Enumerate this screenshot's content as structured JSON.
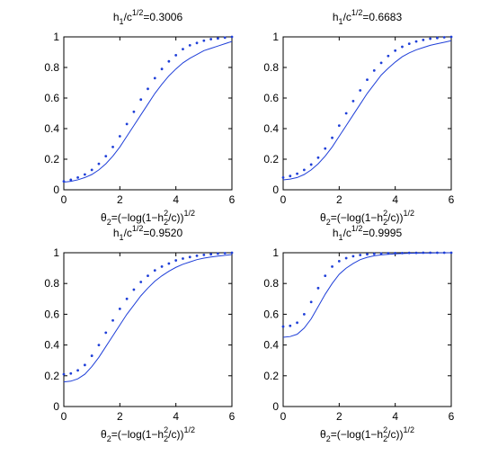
{
  "chart_data": [
    {
      "type": "line",
      "title": {
        "pre": "h",
        "sub": "1",
        "mid": "/c",
        "sup": "1/2",
        "post": "=0.3006"
      },
      "xlabel": {
        "theta_sub": "2",
        "pre": "=(−log(1−h",
        "sup": "2",
        "sub2": "2",
        "post": "/c))",
        "exp": "1/2"
      },
      "xlim": [
        0,
        6
      ],
      "ylim": [
        0,
        1
      ],
      "xticks": [
        "0",
        "2",
        "4",
        "6"
      ],
      "yticks": [
        "0",
        "0.2",
        "0.4",
        "0.6",
        "0.8",
        "1"
      ],
      "series": [
        {
          "style": "solid",
          "x": [
            0,
            0.25,
            0.5,
            0.75,
            1,
            1.25,
            1.5,
            1.75,
            2,
            2.25,
            2.5,
            2.75,
            3,
            3.25,
            3.5,
            3.75,
            4,
            4.25,
            4.5,
            4.75,
            5,
            5.25,
            5.5,
            5.75,
            6
          ],
          "y": [
            0.05,
            0.055,
            0.065,
            0.08,
            0.1,
            0.13,
            0.17,
            0.22,
            0.28,
            0.35,
            0.42,
            0.49,
            0.56,
            0.63,
            0.69,
            0.745,
            0.79,
            0.83,
            0.86,
            0.885,
            0.91,
            0.925,
            0.94,
            0.955,
            0.97
          ]
        },
        {
          "style": "dotted",
          "x": [
            0,
            0.25,
            0.5,
            0.75,
            1,
            1.25,
            1.5,
            1.75,
            2,
            2.25,
            2.5,
            2.75,
            3,
            3.25,
            3.5,
            3.75,
            4,
            4.25,
            4.5,
            4.75,
            5,
            5.25,
            5.5,
            5.75,
            6
          ],
          "y": [
            0.055,
            0.065,
            0.08,
            0.1,
            0.13,
            0.17,
            0.22,
            0.28,
            0.35,
            0.43,
            0.51,
            0.59,
            0.66,
            0.73,
            0.79,
            0.84,
            0.88,
            0.92,
            0.945,
            0.96,
            0.975,
            0.985,
            0.99,
            0.995,
            1.0
          ]
        }
      ]
    },
    {
      "type": "line",
      "title": {
        "pre": "h",
        "sub": "1",
        "mid": "/c",
        "sup": "1/2",
        "post": "=0.6683"
      },
      "xlabel": {
        "theta_sub": "2",
        "pre": "=(−log(1−h",
        "sup": "2",
        "sub2": "2",
        "post": "/c))",
        "exp": "1/2"
      },
      "xlim": [
        0,
        6
      ],
      "ylim": [
        0,
        1
      ],
      "xticks": [
        "0",
        "2",
        "4",
        "6"
      ],
      "yticks": [
        "0",
        "0.2",
        "0.4",
        "0.6",
        "0.8",
        "1"
      ],
      "series": [
        {
          "style": "solid",
          "x": [
            0,
            0.25,
            0.5,
            0.75,
            1,
            1.25,
            1.5,
            1.75,
            2,
            2.25,
            2.5,
            2.75,
            3,
            3.25,
            3.5,
            3.75,
            4,
            4.25,
            4.5,
            4.75,
            5,
            5.25,
            5.5,
            5.75,
            6
          ],
          "y": [
            0.065,
            0.07,
            0.08,
            0.1,
            0.13,
            0.17,
            0.22,
            0.28,
            0.35,
            0.42,
            0.49,
            0.56,
            0.63,
            0.69,
            0.75,
            0.795,
            0.835,
            0.87,
            0.895,
            0.915,
            0.93,
            0.945,
            0.955,
            0.965,
            0.975
          ]
        },
        {
          "style": "dotted",
          "x": [
            0,
            0.25,
            0.5,
            0.75,
            1,
            1.25,
            1.5,
            1.75,
            2,
            2.25,
            2.5,
            2.75,
            3,
            3.25,
            3.5,
            3.75,
            4,
            4.25,
            4.5,
            4.75,
            5,
            5.25,
            5.5,
            5.75,
            6
          ],
          "y": [
            0.08,
            0.09,
            0.105,
            0.13,
            0.165,
            0.21,
            0.27,
            0.34,
            0.42,
            0.5,
            0.58,
            0.65,
            0.72,
            0.78,
            0.83,
            0.875,
            0.91,
            0.935,
            0.955,
            0.97,
            0.98,
            0.988,
            0.993,
            0.997,
            1.0
          ]
        }
      ]
    },
    {
      "type": "line",
      "title": {
        "pre": "h",
        "sub": "1",
        "mid": "/c",
        "sup": "1/2",
        "post": "=0.9520"
      },
      "xlabel": {
        "theta_sub": "2",
        "pre": "=(−log(1−h",
        "sup": "2",
        "sub2": "2",
        "post": "/c))",
        "exp": "1/2"
      },
      "xlim": [
        0,
        6
      ],
      "ylim": [
        0,
        1
      ],
      "xticks": [
        "0",
        "2",
        "4",
        "6"
      ],
      "yticks": [
        "0",
        "0.2",
        "0.4",
        "0.6",
        "0.8",
        "1"
      ],
      "series": [
        {
          "style": "solid",
          "x": [
            0,
            0.25,
            0.5,
            0.75,
            1,
            1.25,
            1.5,
            1.75,
            2,
            2.25,
            2.5,
            2.75,
            3,
            3.25,
            3.5,
            3.75,
            4,
            4.25,
            4.5,
            4.75,
            5,
            5.25,
            5.5,
            5.75,
            6
          ],
          "y": [
            0.16,
            0.165,
            0.18,
            0.21,
            0.26,
            0.32,
            0.39,
            0.46,
            0.53,
            0.6,
            0.66,
            0.72,
            0.77,
            0.815,
            0.85,
            0.88,
            0.905,
            0.925,
            0.94,
            0.955,
            0.965,
            0.972,
            0.978,
            0.983,
            0.988
          ]
        },
        {
          "style": "dotted",
          "x": [
            0,
            0.25,
            0.5,
            0.75,
            1,
            1.25,
            1.5,
            1.75,
            2,
            2.25,
            2.5,
            2.75,
            3,
            3.25,
            3.5,
            3.75,
            4,
            4.25,
            4.5,
            4.75,
            5,
            5.25,
            5.5,
            5.75,
            6
          ],
          "y": [
            0.21,
            0.215,
            0.235,
            0.27,
            0.33,
            0.4,
            0.48,
            0.56,
            0.635,
            0.7,
            0.76,
            0.81,
            0.85,
            0.885,
            0.91,
            0.93,
            0.95,
            0.962,
            0.972,
            0.98,
            0.986,
            0.99,
            0.994,
            0.997,
            1.0
          ]
        }
      ]
    },
    {
      "type": "line",
      "title": {
        "pre": "h",
        "sub": "1",
        "mid": "/c",
        "sup": "1/2",
        "post": "=0.9995"
      },
      "xlabel": {
        "theta_sub": "2",
        "pre": "=(−log(1−h",
        "sup": "2",
        "sub2": "2",
        "post": "/c))",
        "exp": "1/2"
      },
      "xlim": [
        0,
        6
      ],
      "ylim": [
        0,
        1
      ],
      "xticks": [
        "0",
        "2",
        "4",
        "6"
      ],
      "yticks": [
        "0",
        "0.2",
        "0.4",
        "0.6",
        "0.8",
        "1"
      ],
      "series": [
        {
          "style": "solid",
          "x": [
            0,
            0.25,
            0.5,
            0.75,
            1,
            1.25,
            1.5,
            1.75,
            2,
            2.25,
            2.5,
            2.75,
            3,
            3.25,
            3.5,
            3.75,
            4,
            4.25,
            4.5,
            4.75,
            5,
            5.25,
            5.5,
            5.75,
            6
          ],
          "y": [
            0.45,
            0.455,
            0.47,
            0.51,
            0.57,
            0.65,
            0.73,
            0.8,
            0.86,
            0.9,
            0.93,
            0.955,
            0.97,
            0.98,
            0.986,
            0.99,
            0.993,
            0.995,
            0.996,
            0.997,
            0.998,
            0.998,
            0.999,
            0.999,
            1.0
          ]
        },
        {
          "style": "dotted",
          "x": [
            0,
            0.25,
            0.5,
            0.75,
            1,
            1.25,
            1.5,
            1.75,
            2,
            2.25,
            2.5,
            2.75,
            3,
            3.25,
            3.5,
            3.75,
            4,
            4.25,
            4.5,
            4.75,
            5,
            5.25,
            5.5,
            5.75,
            6
          ],
          "y": [
            0.52,
            0.525,
            0.545,
            0.6,
            0.68,
            0.77,
            0.85,
            0.91,
            0.945,
            0.965,
            0.977,
            0.985,
            0.99,
            0.993,
            0.995,
            0.997,
            0.998,
            0.998,
            0.999,
            0.999,
            1.0,
            1.0,
            1.0,
            1.0,
            1.0
          ]
        }
      ]
    }
  ],
  "colors": {
    "series": "#1f3fd8",
    "axes": "#000000"
  }
}
